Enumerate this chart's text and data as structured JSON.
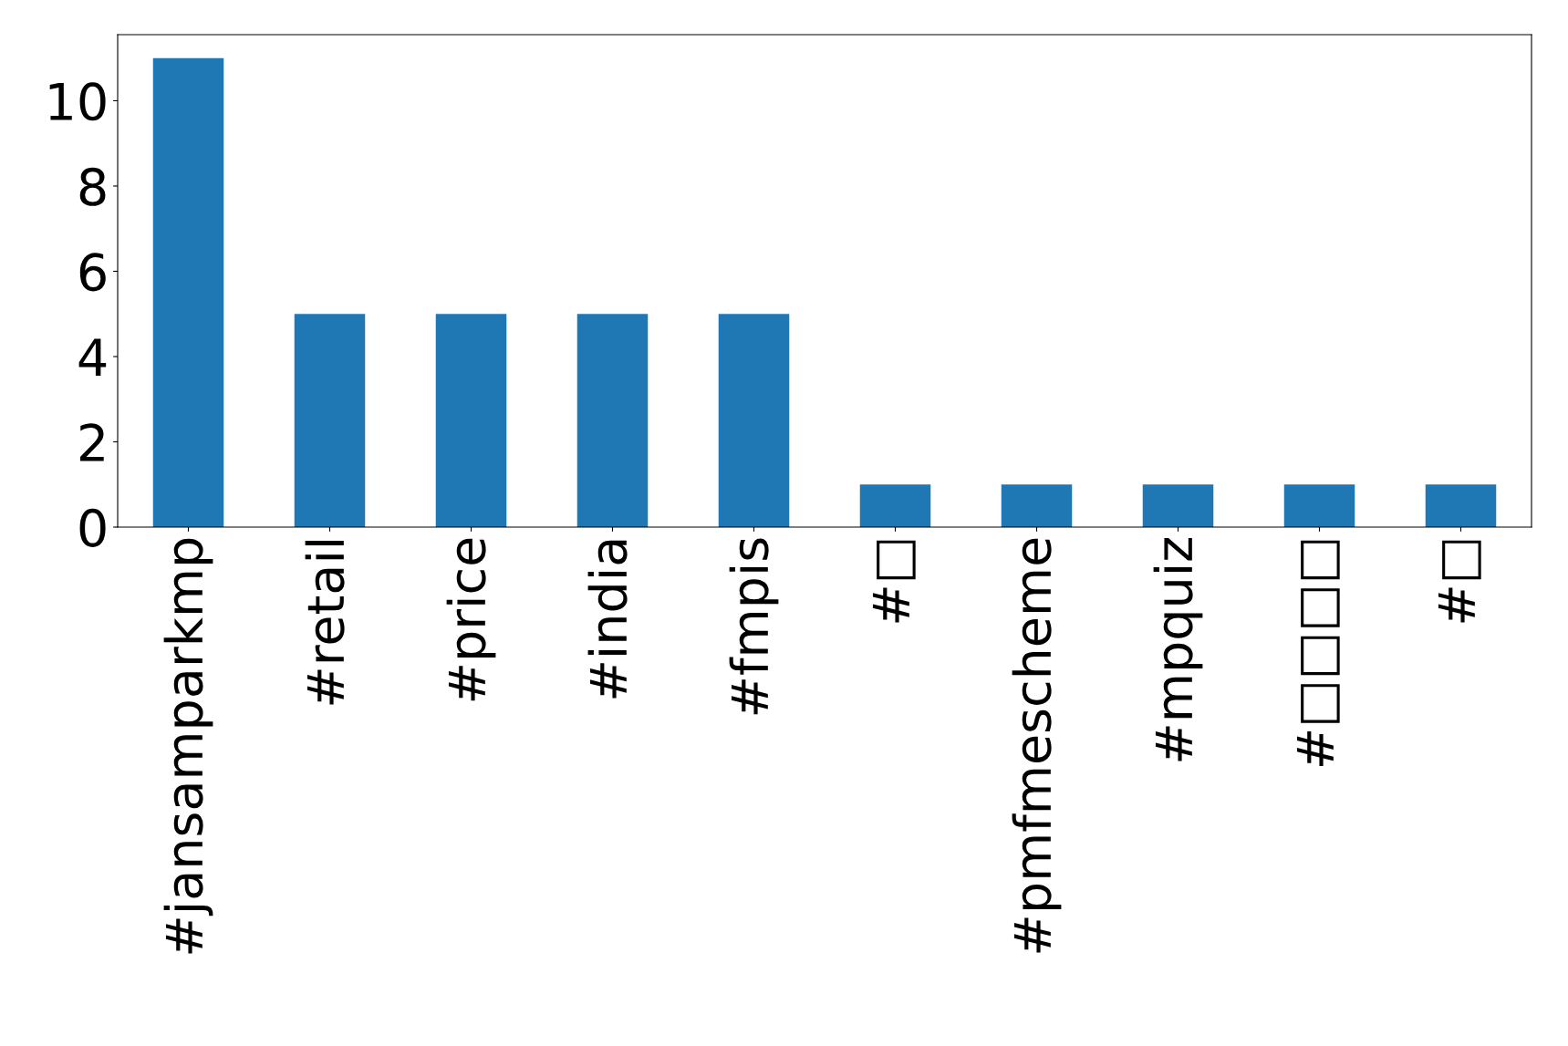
{
  "chart_data": {
    "type": "bar",
    "categories": [
      "#jansamparkmp",
      "#retail",
      "#price",
      "#india",
      "#fmpis",
      "#□",
      "#pmfmescheme",
      "#mpquiz",
      "#□□□□",
      "#□"
    ],
    "values": [
      11,
      5,
      5,
      5,
      5,
      1,
      1,
      1,
      1,
      1
    ],
    "color": "#1f77b4",
    "ylim": [
      0,
      11.55
    ],
    "yticks": [
      0,
      2,
      4,
      6,
      8,
      10
    ],
    "grid": false
  }
}
